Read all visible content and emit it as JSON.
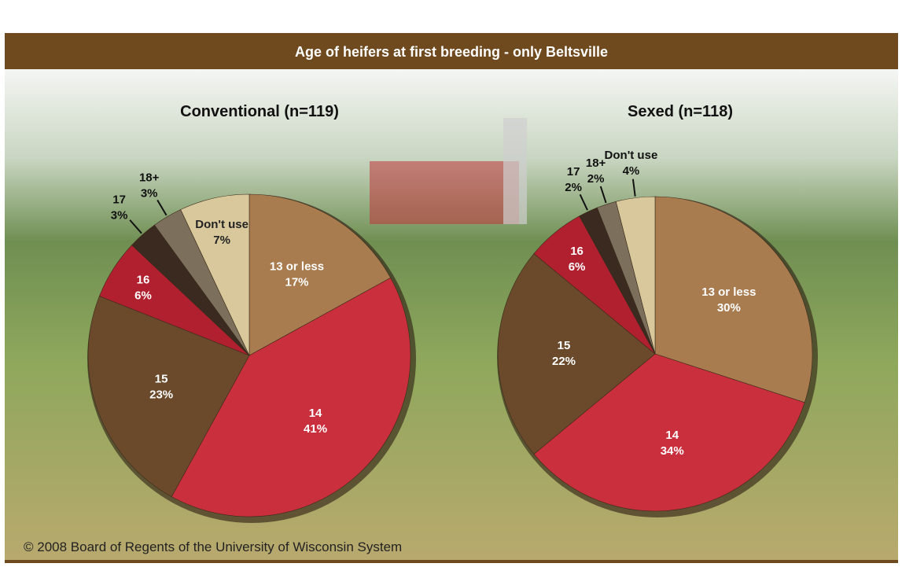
{
  "title": "Age of heifers at first breeding - only Beltsville",
  "footer": "© 2008 Board of Regents of the University of Wisconsin System",
  "chart_data": [
    {
      "type": "pie",
      "title": "Conventional (n=119)",
      "categories": [
        "13 or less",
        "14",
        "15",
        "16",
        "17",
        "18+",
        "Don't use"
      ],
      "values": [
        17,
        41,
        23,
        6,
        3,
        3,
        7
      ],
      "value_labels": [
        "17%",
        "41%",
        "23%",
        "6%",
        "3%",
        "3%",
        "7%"
      ],
      "colors": [
        "#a97c50",
        "#c92f3c",
        "#6b4a2c",
        "#b0202f",
        "#3a2a20",
        "#7c705c",
        "#d8c89c"
      ]
    },
    {
      "type": "pie",
      "title": "Sexed (n=118)",
      "categories": [
        "13 or less",
        "14",
        "15",
        "16",
        "17",
        "18+",
        "Don't use"
      ],
      "values": [
        30,
        34,
        22,
        6,
        2,
        2,
        4
      ],
      "value_labels": [
        "30%",
        "34%",
        "22%",
        "6%",
        "2%",
        "2%",
        "4%"
      ],
      "colors": [
        "#a97c50",
        "#c92f3c",
        "#6b4a2c",
        "#b0202f",
        "#3a2a20",
        "#7c705c",
        "#d8c89c"
      ]
    }
  ]
}
